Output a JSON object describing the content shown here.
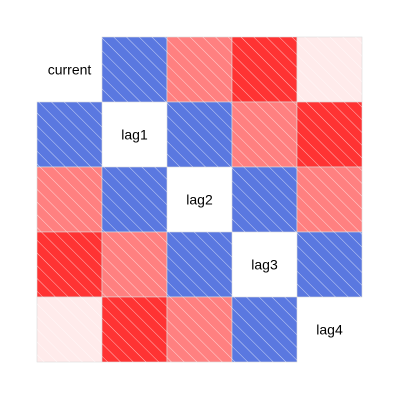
{
  "chart_data": {
    "type": "heatmap",
    "title": "",
    "variables": [
      "current",
      "lag1",
      "lag2",
      "lag3",
      "lag4"
    ],
    "matrix": [
      [
        1.0,
        -0.55,
        0.5,
        0.8,
        0.08
      ],
      [
        -0.55,
        1.0,
        -0.55,
        0.5,
        0.8
      ],
      [
        0.5,
        -0.55,
        1.0,
        -0.55,
        0.5
      ],
      [
        0.8,
        0.5,
        -0.55,
        1.0,
        -0.55
      ],
      [
        0.08,
        0.8,
        0.5,
        -0.55,
        1.0
      ]
    ],
    "color_scale": {
      "positive_color": "#FF0000",
      "negative_color": "#0000FF",
      "zero_color": "#FFFFFF",
      "range": [
        -1,
        1
      ]
    },
    "negative_hatch": "diagonal",
    "diagonal_shows": "variable names",
    "grid": true
  }
}
